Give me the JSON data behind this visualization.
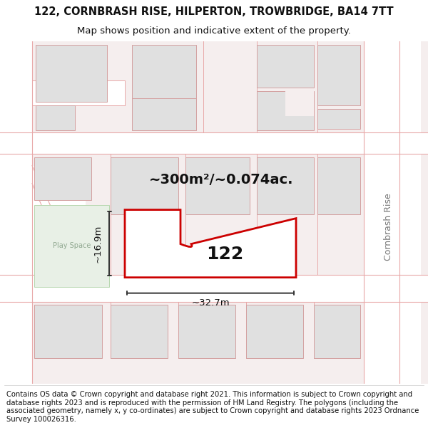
{
  "title": "122, CORNBRASH RISE, HILPERTON, TROWBRIDGE, BA14 7TT",
  "subtitle": "Map shows position and indicative extent of the property.",
  "footer": "Contains OS data © Crown copyright and database right 2021. This information is subject to Crown copyright and database rights 2023 and is reproduced with the permission of HM Land Registry. The polygons (including the associated geometry, namely x, y co-ordinates) are subject to Crown copyright and database rights 2023 Ordnance Survey 100026316.",
  "area_label": "~300m²/~0.074ac.",
  "width_label": "~32.7m",
  "height_label": "~16.9m",
  "plot_number": "122",
  "play_space_label": "Play Space",
  "street_label": "Cornbrash Rise",
  "bg_color": "#f5eeee",
  "plot_color": "#cc0000",
  "plot_fill": "#ffffff",
  "block_fill": "#e0e0e0",
  "block_edge": "#d4a0a0",
  "play_space_fill": "#e8f0e6",
  "road_line": "#e8a8a8",
  "title_fontsize": 10.5,
  "subtitle_fontsize": 9.5,
  "footer_fontsize": 7.2,
  "area_fontsize": 14,
  "dim_fontsize": 9.5,
  "plot_num_fontsize": 18,
  "play_space_fontsize": 7,
  "street_fontsize": 9
}
